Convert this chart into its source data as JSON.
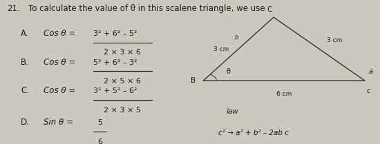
{
  "question_num": "21.",
  "question_text": "To calculate the value of θ in this scalene triangle, we use",
  "options": [
    {
      "label": "A.",
      "prefix": "Cos θ =",
      "numerator": "3² + 6² – 5²",
      "denominator": "2 × 3 × 6"
    },
    {
      "label": "B.",
      "prefix": "Cos θ =",
      "numerator": "5² + 6² – 3²",
      "denominator": "2 × 5 × 6"
    },
    {
      "label": "C.",
      "prefix": "Cos θ =",
      "numerator": "3² + 5² – 6²",
      "denominator": "2 × 3 × 5"
    },
    {
      "label": "D.",
      "prefix": "Sin θ =",
      "fraction": "5/6"
    }
  ],
  "bg_color": "#cdc8be",
  "text_color": "#1a1a1a",
  "tri_vertex_B": [
    0.535,
    0.44
  ],
  "tri_vertex_C": [
    0.72,
    0.88
  ],
  "tri_vertex_A": [
    0.96,
    0.44
  ],
  "tri_label_B": "B",
  "tri_label_C": "C",
  "tri_label_A": "a",
  "tri_label_c": "c",
  "tri_label_b": "b",
  "tri_side_BC": "3 cm",
  "tri_side_CA": "3 cm",
  "tri_side_BA": "6 cm",
  "tri_theta": "θ",
  "law_text": "law",
  "law_formula": "c² → a² + b² – 2ab c"
}
